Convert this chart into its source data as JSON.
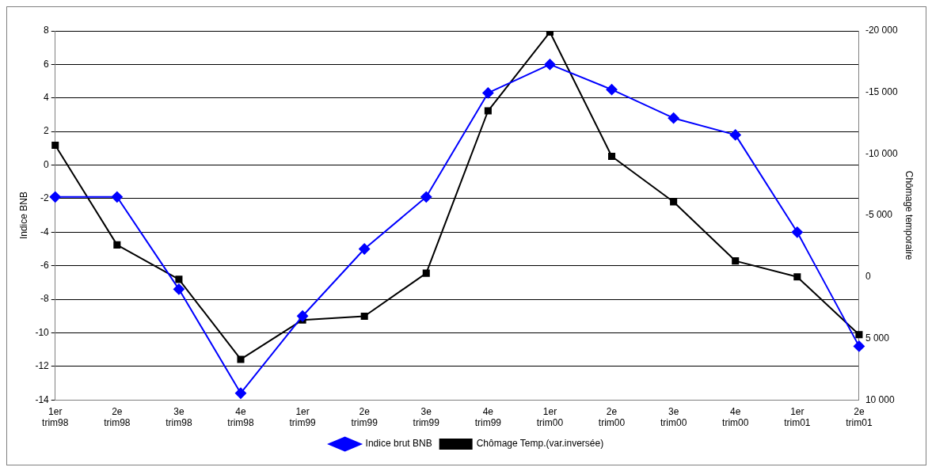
{
  "chart_data": {
    "type": "line",
    "ylabel": "Indice BNB",
    "y2label": "Chômage temporaire",
    "categories": [
      "1er trim98",
      "2e trim98",
      "3e trim98",
      "4e trim98",
      "1er trim99",
      "2e trim99",
      "3e trim99",
      "4e trim99",
      "1er trim00",
      "2e trim00",
      "3e trim00",
      "4e trim00",
      "1er trim01",
      "2e trim01"
    ],
    "series": [
      {
        "name": "Indice brut BNB",
        "color": "#0000ff",
        "marker": "diamond",
        "values": [
          -1.9,
          -1.9,
          -7.4,
          -13.6,
          -9.0,
          -5.0,
          -1.9,
          4.3,
          6.0,
          4.5,
          2.8,
          1.8,
          -4.0,
          -10.8
        ]
      },
      {
        "name": "Chômage Temp.(var.inversée)",
        "color": "#000000",
        "marker": "square",
        "axis": "y2",
        "values": [
          -10700,
          -2600,
          200,
          6700,
          3500,
          3200,
          -300,
          -13500,
          -19900,
          -9800,
          -6100,
          -1300,
          0,
          4700
        ]
      }
    ],
    "ylim": [
      -14,
      8
    ],
    "yticks": [
      -14,
      -12,
      -10,
      -8,
      -6,
      -4,
      -2,
      0,
      2,
      4,
      6,
      8
    ],
    "y2lim": [
      10000,
      -20000
    ],
    "y2ticks": [
      {
        "value": 10000,
        "label": "10 000"
      },
      {
        "value": 5000,
        "label": "5 000"
      },
      0,
      {
        "value": -5000,
        "label": "-5 000"
      },
      {
        "value": -10000,
        "label": "-10 000"
      },
      {
        "value": -15000,
        "label": "-15 000"
      },
      {
        "value": -20000,
        "label": "-20 000"
      }
    ],
    "grid": "y",
    "legend": "bottom"
  }
}
